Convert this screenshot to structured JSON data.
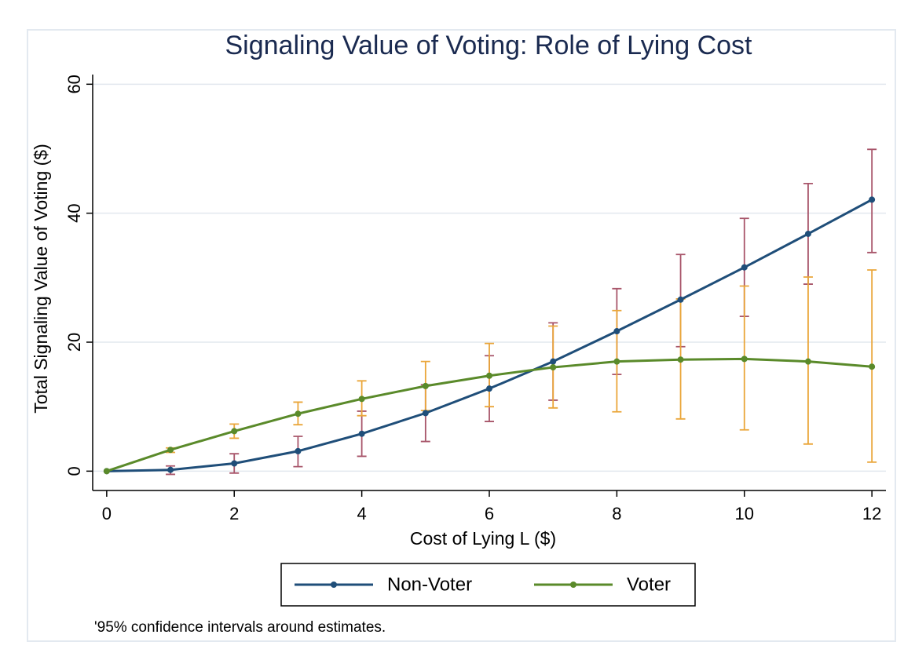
{
  "chart_data": {
    "type": "line",
    "title": "Signaling Value of Voting: Role of Lying Cost",
    "x_label": "Cost of Lying L ($)",
    "y_label": "Total Signaling Value of Voting ($)",
    "note": "'95% confidence intervals around estimates.",
    "x": [
      0,
      1,
      2,
      3,
      4,
      5,
      6,
      7,
      8,
      9,
      10,
      11,
      12
    ],
    "series": [
      {
        "name": "Non-Voter",
        "color": "#1f4e79",
        "error_color": "#a8556a",
        "values": [
          0,
          0.2,
          1.2,
          3.1,
          5.8,
          9,
          12.8,
          17,
          21.7,
          26.6,
          31.6,
          36.8,
          42.1
        ],
        "lower": [
          null,
          -0.5,
          -0.3,
          0.7,
          2.3,
          4.6,
          7.7,
          11,
          15,
          19.3,
          24,
          29,
          33.9
        ],
        "upper": [
          null,
          0.8,
          2.7,
          5.4,
          9.3,
          13.4,
          17.9,
          23,
          28.3,
          33.6,
          39.2,
          44.6,
          49.9
        ]
      },
      {
        "name": "Voter",
        "color": "#5a8a2a",
        "error_color": "#eaa63a",
        "values": [
          0,
          3.3,
          6.2,
          8.9,
          11.2,
          13.2,
          14.8,
          16.1,
          17,
          17.3,
          17.4,
          17,
          16.2
        ],
        "lower": [
          null,
          2.9,
          5.1,
          7.2,
          8.6,
          9.4,
          10,
          9.8,
          9.2,
          8.1,
          6.4,
          4.2,
          1.4
        ],
        "upper": [
          null,
          3.6,
          7.3,
          10.7,
          14,
          17,
          19.8,
          22.5,
          24.9,
          26.7,
          28.7,
          30.1,
          31.2
        ]
      }
    ],
    "xlim": [
      -0.22,
      12.22
    ],
    "xticks": [
      0,
      2,
      4,
      6,
      8,
      10,
      12
    ],
    "ylim": [
      -3,
      61.5
    ],
    "yticks": [
      0,
      20,
      40,
      60
    ],
    "grid": true,
    "legend": "bottom"
  }
}
